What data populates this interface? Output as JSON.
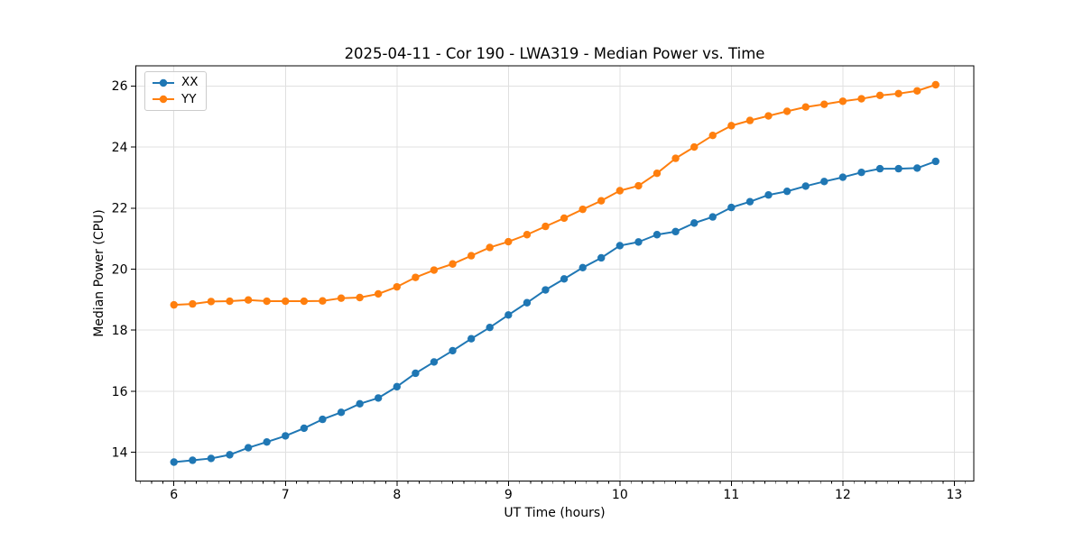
{
  "chart_data": {
    "type": "line",
    "title": "2025-04-11 - Cor 190 - LWA319 - Median Power vs. Time",
    "xlabel": "UT Time (hours)",
    "ylabel": "Median Power (CPU)",
    "xlim": [
      5.658,
      13.175
    ],
    "ylim": [
      13.06,
      26.66
    ],
    "xticks": [
      6,
      7,
      8,
      9,
      10,
      11,
      12,
      13
    ],
    "yticks": [
      14,
      16,
      18,
      20,
      22,
      24,
      26
    ],
    "x_minor_tick_step": 0.1,
    "grid": true,
    "grid_color": "#e0e0e0",
    "spine_color": "#000000",
    "legend_position": "upper-left",
    "x": [
      6.0,
      6.167,
      6.333,
      6.5,
      6.667,
      6.833,
      7.0,
      7.167,
      7.333,
      7.5,
      7.667,
      7.833,
      8.0,
      8.167,
      8.333,
      8.5,
      8.667,
      8.833,
      9.0,
      9.167,
      9.333,
      9.5,
      9.667,
      9.833,
      10.0,
      10.167,
      10.333,
      10.5,
      10.667,
      10.833,
      11.0,
      11.167,
      11.333,
      11.5,
      11.667,
      11.833,
      12.0,
      12.167,
      12.333,
      12.5,
      12.667,
      12.833
    ],
    "series": [
      {
        "name": "XX",
        "color": "#1f77b4",
        "values": [
          13.68,
          13.74,
          13.8,
          13.92,
          14.15,
          14.34,
          14.54,
          14.79,
          15.08,
          15.31,
          15.59,
          15.78,
          16.15,
          16.59,
          16.96,
          17.33,
          17.72,
          18.09,
          18.5,
          18.9,
          19.32,
          19.68,
          20.05,
          20.37,
          20.77,
          20.89,
          21.13,
          21.23,
          21.51,
          21.71,
          22.02,
          22.21,
          22.43,
          22.55,
          22.72,
          22.87,
          23.01,
          23.17,
          23.29,
          23.29,
          23.31,
          23.53
        ]
      },
      {
        "name": "YY",
        "color": "#ff7f0e",
        "values": [
          18.83,
          18.86,
          18.94,
          18.95,
          18.99,
          18.95,
          18.95,
          18.95,
          18.96,
          19.05,
          19.07,
          19.19,
          19.42,
          19.73,
          19.97,
          20.17,
          20.44,
          20.71,
          20.9,
          21.13,
          21.4,
          21.67,
          21.96,
          22.24,
          22.57,
          22.73,
          23.14,
          23.63,
          24.0,
          24.38,
          24.7,
          24.87,
          25.02,
          25.17,
          25.31,
          25.4,
          25.5,
          25.58,
          25.69,
          25.75,
          25.84,
          26.04
        ]
      }
    ]
  }
}
